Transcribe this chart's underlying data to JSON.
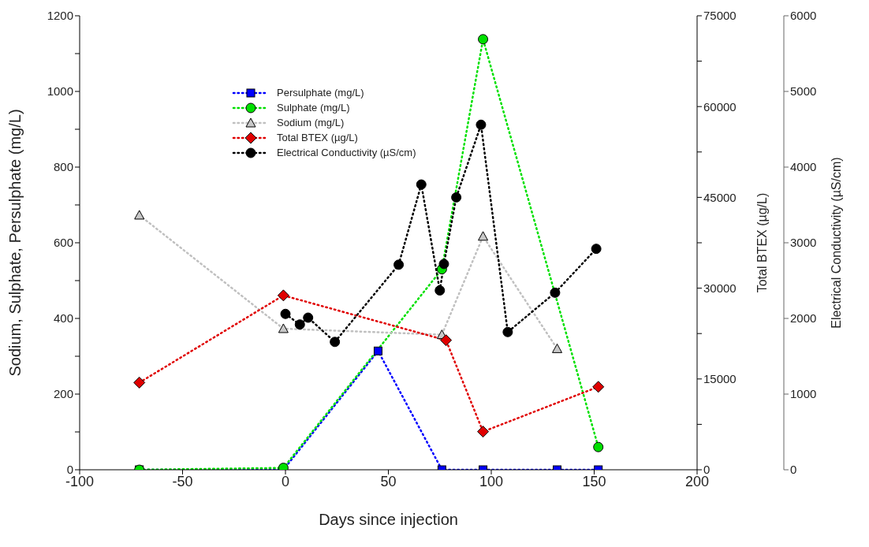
{
  "chart_data": {
    "type": "line",
    "xlabel": "Days since injection",
    "ylabel": "Sodium, Sulphate, Persulphate (mg/L)",
    "y2label": "Total BTEX (µg/L)",
    "y3label": "Electrical Conductivity (µS/cm)",
    "xlim": [
      -100,
      200
    ],
    "xticks": [
      -100,
      -50,
      0,
      50,
      100,
      150,
      200
    ],
    "ylim": [
      0,
      1200
    ],
    "yticks": [
      0,
      {
        "value": 100,
        "label": null
      },
      200,
      {
        "value": 300,
        "label": null
      },
      400,
      {
        "value": 500,
        "label": null
      },
      600,
      {
        "value": 700,
        "label": null
      },
      800,
      {
        "value": 900,
        "label": null
      },
      1000,
      {
        "value": 1100,
        "label": null
      },
      1200
    ],
    "y2lim": [
      0,
      75000
    ],
    "y2ticks": [
      0,
      {
        "value": 7500,
        "label": null
      },
      15000,
      {
        "value": 22500,
        "label": null
      },
      30000,
      {
        "value": 37500,
        "label": null
      },
      45000,
      {
        "value": 52500,
        "label": null
      },
      60000,
      {
        "value": 67500,
        "label": null
      },
      75000
    ],
    "y3lim": [
      0,
      6000
    ],
    "y3ticks": [
      0,
      1000,
      2000,
      3000,
      4000,
      5000,
      6000
    ],
    "grid": false,
    "legend": "top left",
    "line_style": "dotted",
    "series": [
      {
        "name": "Persulphate (mg/L)",
        "color": "#0000ff",
        "marker": "square",
        "x": [
          -71,
          -1,
          45,
          76,
          96,
          132,
          152
        ],
        "values": [
          0,
          0,
          314,
          0,
          0,
          0,
          0
        ]
      },
      {
        "name": "Sulphate (mg/L)",
        "color": "#00e000",
        "marker": "circle",
        "x": [
          -71,
          -1,
          76,
          96,
          152
        ],
        "values": [
          0,
          5,
          530,
          1138,
          60
        ]
      },
      {
        "name": "Sodium (mg/L)",
        "color": "#c0c0c0",
        "marker": "triangle",
        "x": [
          -71,
          -1,
          76,
          96,
          132
        ],
        "values": [
          673,
          373,
          357,
          617,
          320
        ]
      },
      {
        "name": "Total BTEX (µg/L)",
        "color": "#e00000",
        "marker": "diamond",
        "axis": "y2",
        "x": [
          -71,
          -1,
          78,
          96,
          152
        ],
        "values": [
          14400,
          28800,
          21400,
          6300,
          13700
        ]
      },
      {
        "name": "Electrical Conductivity (µS/cm)",
        "color": "#000000",
        "marker": "circle",
        "axis": "y3",
        "x": [
          0,
          7,
          11,
          24,
          55,
          66,
          75,
          77,
          83,
          95,
          108,
          131,
          151
        ],
        "values": [
          2060,
          1920,
          2010,
          1690,
          2710,
          3770,
          2370,
          2720,
          3600,
          4560,
          1820,
          2340,
          2920
        ]
      }
    ]
  }
}
